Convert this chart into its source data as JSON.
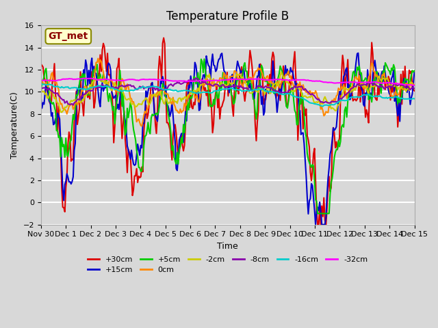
{
  "title": "Temperature Profile B",
  "xlabel": "Time",
  "ylabel": "Temperature(C)",
  "ylim": [
    -2,
    16
  ],
  "yticks": [
    -2,
    0,
    2,
    4,
    6,
    8,
    10,
    12,
    14,
    16
  ],
  "x_labels": [
    "Nov 30",
    "Dec 1",
    "Dec 2",
    "Dec 3",
    "Dec 4",
    "Dec 5",
    "Dec 6",
    "Dec 7",
    "Dec 8",
    "Dec 9",
    "Dec 10",
    "Dec 11",
    "Dec 12",
    "Dec 13",
    "Dec 14",
    "Dec 15"
  ],
  "series_labels": [
    "+30cm",
    "+15cm",
    "+5cm",
    "0cm",
    "-2cm",
    "-8cm",
    "-16cm",
    "-32cm"
  ],
  "series_colors": [
    "#dd0000",
    "#0000cc",
    "#00cc00",
    "#ff8800",
    "#cccc00",
    "#8800aa",
    "#00cccc",
    "#ff00ff"
  ],
  "series_lw": [
    1.5,
    1.5,
    1.5,
    1.5,
    1.5,
    1.5,
    1.5,
    1.5
  ],
  "annotation_text": "GT_met",
  "annotation_bbox": {
    "boxstyle": "round,pad=0.3",
    "facecolor": "#ffffcc",
    "edgecolor": "#996600",
    "linewidth": 1.5
  },
  "bg_color": "#d8d8d8",
  "plot_bg_color": "#d8d8d8",
  "grid_color": "white",
  "n_points": 360,
  "title_fontsize": 12
}
